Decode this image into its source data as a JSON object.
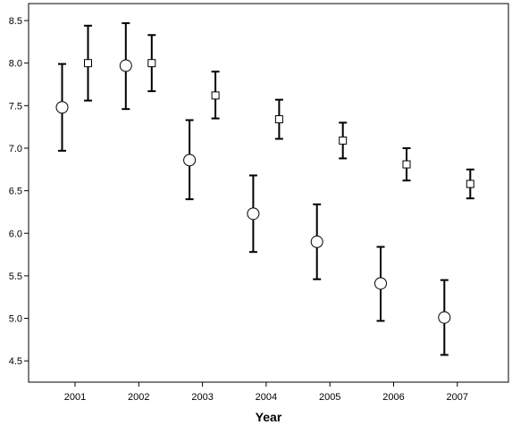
{
  "chart_data": {
    "type": "scatter",
    "subtype": "error-bar",
    "title": "",
    "xlabel": "Year",
    "ylabel": "",
    "categories": [
      "2001",
      "2002",
      "2003",
      "2004",
      "2005",
      "2006",
      "2007"
    ],
    "ylim": [
      4.25,
      8.7
    ],
    "yticks": [
      4.5,
      5.0,
      5.5,
      6.0,
      6.5,
      7.0,
      7.5,
      8.0,
      8.5
    ],
    "ytick_labels": [
      "4.5",
      "5.0",
      "5.5",
      "6.0",
      "6.5",
      "7.0",
      "7.5",
      "8.0",
      "8.5"
    ],
    "grid": false,
    "legend": "none",
    "colors": {
      "stroke": "#000000",
      "marker_fill": "#ffffff",
      "background": "#ffffff"
    },
    "series": [
      {
        "marker": "circle",
        "values": [
          7.48,
          7.97,
          6.86,
          6.23,
          5.9,
          5.41,
          5.01
        ],
        "lower": [
          6.97,
          7.46,
          6.4,
          5.78,
          5.46,
          4.97,
          4.57
        ],
        "upper": [
          7.99,
          8.47,
          7.33,
          6.68,
          6.34,
          5.84,
          5.45
        ]
      },
      {
        "marker": "square",
        "values": [
          8.0,
          8.0,
          7.62,
          7.34,
          7.09,
          6.81,
          6.58
        ],
        "lower": [
          7.56,
          7.67,
          7.35,
          7.11,
          6.88,
          6.62,
          6.41
        ],
        "upper": [
          8.44,
          8.33,
          7.9,
          7.57,
          7.3,
          7.0,
          6.75
        ]
      }
    ]
  }
}
